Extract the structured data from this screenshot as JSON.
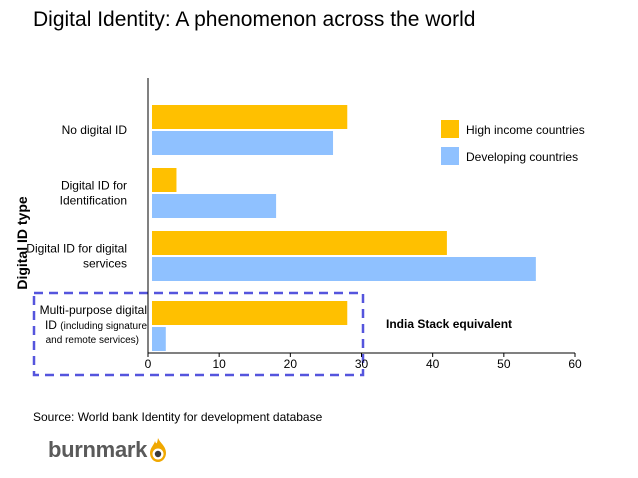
{
  "title": "Digital Identity: A phenomenon across the world",
  "source": "Source: World bank Identity for development database",
  "logo": {
    "text": "burnmark",
    "icon": "flame-icon"
  },
  "chart_data": {
    "type": "bar",
    "orientation": "horizontal",
    "ylabel": "Digital ID type",
    "xlim": [
      0,
      60
    ],
    "xticks": [
      0,
      10,
      20,
      30,
      40,
      50,
      60
    ],
    "categories": [
      [
        "No digital ID"
      ],
      [
        "Digital ID for",
        "Identification"
      ],
      [
        "Digital ID for digital",
        "services"
      ],
      [
        "Multi-purpose digital",
        "ID",
        "(including signature",
        "and remote services)"
      ]
    ],
    "series": [
      {
        "name": "High income countries",
        "color": "#ffc000",
        "values": [
          28,
          4,
          42,
          28
        ]
      },
      {
        "name": "Developing countries",
        "color": "#8fc1ff",
        "values": [
          26,
          18,
          54.5,
          2.5
        ]
      }
    ],
    "legend": "right",
    "grid": false,
    "annotation": "India Stack equivalent",
    "highlight_color": "#5555dd"
  }
}
